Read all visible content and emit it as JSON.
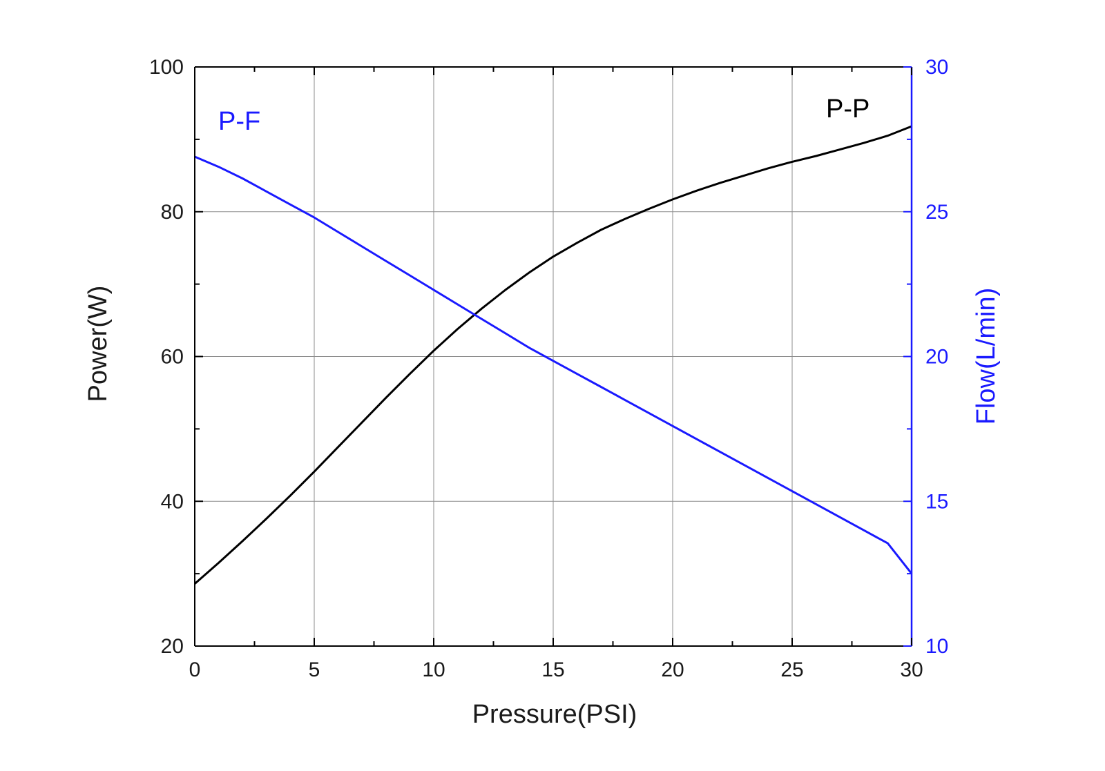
{
  "chart_data": {
    "type": "line",
    "title": "",
    "xlabel": "Pressure(PSI)",
    "ylabel_left": "Power(W)",
    "ylabel_right": "Flow(L/min)",
    "xlim": [
      0,
      30
    ],
    "ylim_left": [
      20,
      100
    ],
    "ylim_right": [
      10,
      30
    ],
    "x_ticks": [
      0,
      5,
      10,
      15,
      20,
      25,
      30
    ],
    "y_left_ticks": [
      20,
      40,
      60,
      80,
      100
    ],
    "y_right_ticks": [
      10,
      15,
      20,
      25,
      30
    ],
    "grid": true,
    "colors": {
      "left_axis": "#000000",
      "right_axis": "#1a1aff",
      "grid": "#8c8c8c"
    },
    "series": [
      {
        "name": "P-P",
        "label": "P-P",
        "axis": "left",
        "color": "#000000",
        "x": [
          0,
          1,
          2,
          3,
          4,
          5,
          6,
          7,
          8,
          9,
          10,
          11,
          12,
          13,
          14,
          15,
          16,
          17,
          18,
          19,
          20,
          21,
          22,
          23,
          24,
          25,
          26,
          27,
          28,
          29,
          30
        ],
        "y": [
          28.6,
          31.5,
          34.5,
          37.6,
          40.8,
          44.1,
          47.5,
          50.9,
          54.3,
          57.6,
          60.8,
          63.8,
          66.6,
          69.2,
          71.6,
          73.8,
          75.7,
          77.5,
          79.0,
          80.4,
          81.7,
          82.9,
          84.0,
          85.0,
          86.0,
          86.9,
          87.7,
          88.6,
          89.5,
          90.5,
          91.8
        ]
      },
      {
        "name": "P-F",
        "label": "P-F",
        "axis": "right",
        "color": "#1a1aff",
        "x": [
          0,
          1,
          2,
          3,
          4,
          5,
          6,
          7,
          8,
          9,
          10,
          11,
          12,
          13,
          14,
          15,
          16,
          17,
          18,
          19,
          20,
          21,
          22,
          23,
          24,
          25,
          26,
          27,
          28,
          29,
          30
        ],
        "y": [
          26.9,
          26.55,
          26.15,
          25.7,
          25.25,
          24.8,
          24.3,
          23.8,
          23.3,
          22.8,
          22.3,
          21.8,
          21.3,
          20.8,
          20.3,
          19.85,
          19.4,
          18.95,
          18.5,
          18.05,
          17.6,
          17.15,
          16.7,
          16.25,
          15.8,
          15.35,
          14.9,
          14.45,
          14.0,
          13.55,
          12.5
        ]
      }
    ]
  }
}
